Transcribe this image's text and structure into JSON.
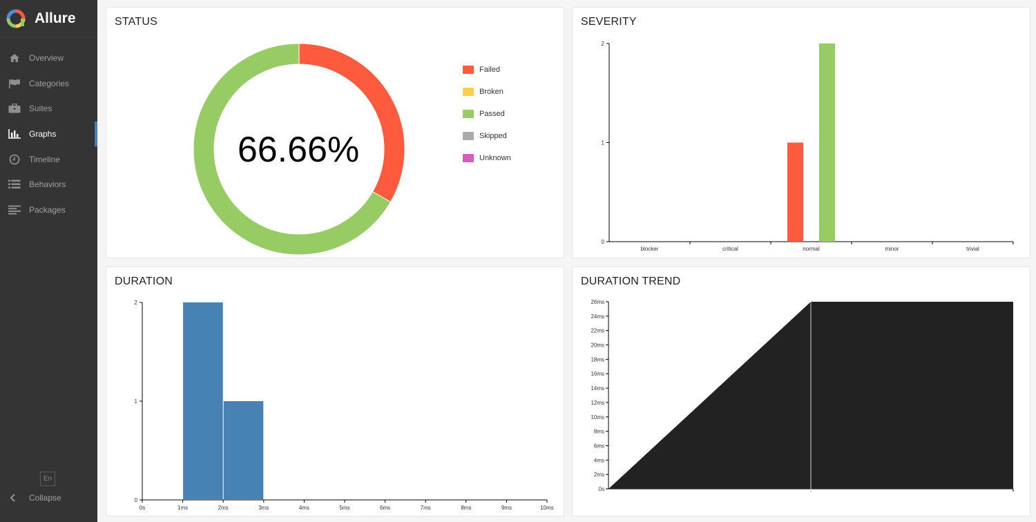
{
  "app": {
    "name": "Allure"
  },
  "sidebar": {
    "items": [
      {
        "label": "Overview",
        "icon": "home-icon",
        "active": false
      },
      {
        "label": "Categories",
        "icon": "flag-icon",
        "active": false
      },
      {
        "label": "Suites",
        "icon": "briefcase-icon",
        "active": false
      },
      {
        "label": "Graphs",
        "icon": "bar-chart-icon",
        "active": true
      },
      {
        "label": "Timeline",
        "icon": "clock-icon",
        "active": false
      },
      {
        "label": "Behaviors",
        "icon": "list-icon",
        "active": false
      },
      {
        "label": "Packages",
        "icon": "align-left-icon",
        "active": false
      }
    ],
    "language": "En",
    "collapse_label": "Collapse"
  },
  "colors": {
    "failed": "#fd5a3e",
    "broken": "#ffd050",
    "passed": "#97cc64",
    "skipped": "#aaaaaa",
    "unknown": "#d35ebe",
    "duration_bar": "#4682b4",
    "trend_fill": "#222222"
  },
  "status": {
    "title": "STATUS",
    "center_label": "66.66%",
    "legend": [
      {
        "label": "Failed",
        "key": "failed"
      },
      {
        "label": "Broken",
        "key": "broken"
      },
      {
        "label": "Passed",
        "key": "passed"
      },
      {
        "label": "Skipped",
        "key": "skipped"
      },
      {
        "label": "Unknown",
        "key": "unknown"
      }
    ]
  },
  "severity": {
    "title": "SEVERITY"
  },
  "duration": {
    "title": "DURATION"
  },
  "duration_trend": {
    "title": "DURATION TREND"
  },
  "chart_data": [
    {
      "type": "pie",
      "title": "STATUS",
      "categories": [
        "Failed",
        "Broken",
        "Passed",
        "Skipped",
        "Unknown"
      ],
      "values": [
        1,
        0,
        2,
        0,
        0
      ]
    },
    {
      "type": "bar",
      "title": "SEVERITY",
      "categories": [
        "blocker",
        "critical",
        "normal",
        "minor",
        "trivial"
      ],
      "series": [
        {
          "values": [
            0,
            0,
            1,
            0,
            0
          ],
          "color": "#fd5a3e"
        },
        {
          "values": [
            0,
            0,
            2,
            0,
            0
          ],
          "color": "#97cc64"
        }
      ],
      "ylim": [
        0,
        2
      ],
      "yticks": [
        "0",
        "1",
        "2"
      ]
    },
    {
      "type": "bar",
      "title": "DURATION",
      "x_ticks": [
        "0s",
        "1ms",
        "2ms",
        "3ms",
        "4ms",
        "5ms",
        "6ms",
        "7ms",
        "8ms",
        "9ms",
        "10ms"
      ],
      "xlim": [
        0,
        10
      ],
      "bins": [
        {
          "from": 1,
          "to": 2,
          "count": 2
        },
        {
          "from": 2,
          "to": 3,
          "count": 1
        }
      ],
      "ylim": [
        0,
        2
      ],
      "yticks": [
        "0",
        "1",
        "2"
      ]
    },
    {
      "type": "area",
      "title": "DURATION TREND",
      "y_ticks": [
        "0s",
        "2ms",
        "4ms",
        "6ms",
        "8ms",
        "10ms",
        "12ms",
        "14ms",
        "16ms",
        "18ms",
        "20ms",
        "22ms",
        "24ms",
        "26ms"
      ],
      "ylim": [
        0,
        26
      ],
      "points": [
        0,
        26,
        26
      ]
    }
  ]
}
